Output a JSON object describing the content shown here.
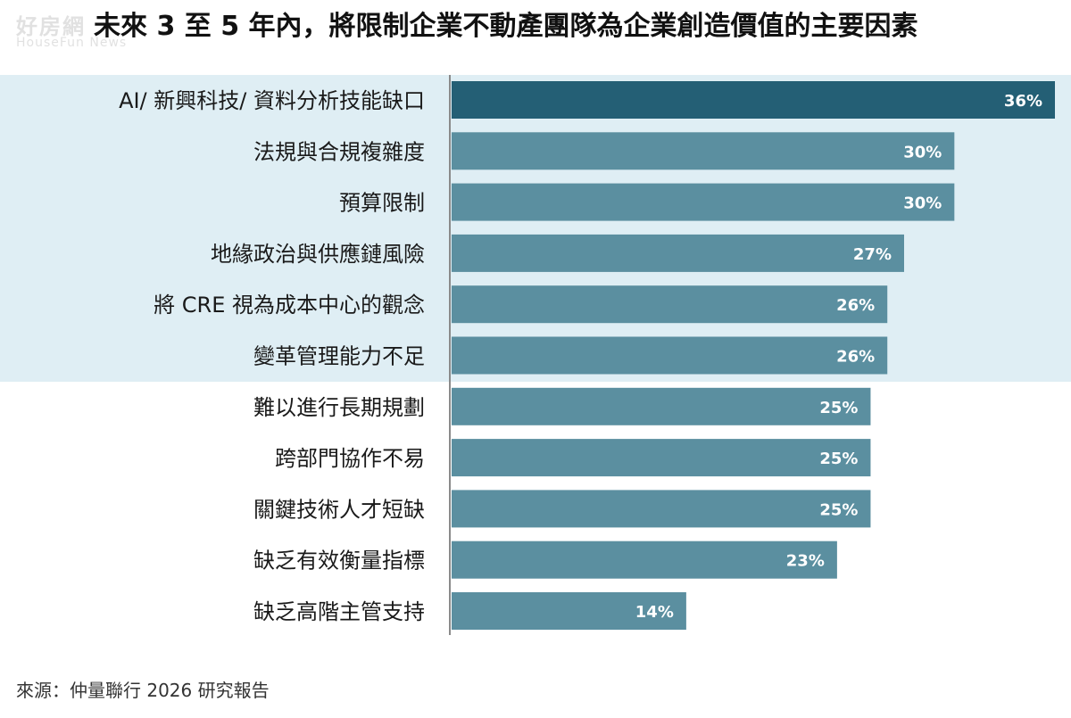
{
  "watermark": {
    "main": "好房網",
    "sub": "HouseFun News"
  },
  "source": "來源：仲量聯行 2026 研究報告",
  "colors": {
    "highlight_bar": "#245f75",
    "bar": "#5b8fa0",
    "band": "#dfeef4",
    "axis": "#8a8a8a"
  },
  "chart_data": {
    "type": "bar",
    "orientation": "horizontal",
    "title": "未來 3 至 5 年內，將限制企業不動產團隊為企業創造價值的主要因素",
    "xlim": [
      0,
      36
    ],
    "categories": [
      "AI/ 新興科技/ 資料分析技能缺口",
      "法規與合規複雜度",
      "預算限制",
      "地緣政治與供應鏈風險",
      "將 CRE 視為成本中心的觀念",
      "變革管理能力不足",
      "難以進行長期規劃",
      "跨部門協作不易",
      "關鍵技術人才短缺",
      "缺乏有效衡量指標",
      "缺乏高階主管支持"
    ],
    "values": [
      36,
      30,
      30,
      27,
      26,
      26,
      25,
      25,
      25,
      23,
      14
    ],
    "value_labels": [
      "36%",
      "30%",
      "30%",
      "27%",
      "26%",
      "26%",
      "25%",
      "25%",
      "25%",
      "23%",
      "14%"
    ],
    "highlighted_count": 6,
    "emphasized_index": 0
  }
}
